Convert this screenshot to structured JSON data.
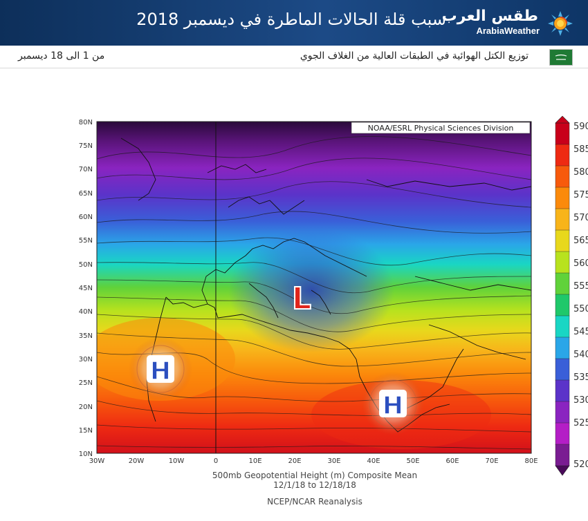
{
  "header": {
    "title": "سبب قلة الحالات الماطرة في ديسمبر 2018",
    "brand_ar": "طقس العرب",
    "brand_en": "ArabiaWeather",
    "logo_icon": "sun-swirl-logo-icon"
  },
  "subheader": {
    "caption": "توزيع الكتل الهوائية في الطبقات العالية من الغلاف الجوي",
    "date_range": "من 1 الى 18 ديسمبر",
    "flag_icon": "saudi-flag-icon"
  },
  "map": {
    "credit": "NOAA/ESRL Physical Sciences Division",
    "lat_labels": [
      "80N",
      "75N",
      "70N",
      "65N",
      "60N",
      "55N",
      "50N",
      "45N",
      "40N",
      "35N",
      "30N",
      "25N",
      "20N",
      "15N",
      "10N"
    ],
    "lon_labels": [
      "30W",
      "20W",
      "10W",
      "0",
      "10E",
      "20E",
      "30E",
      "40E",
      "50E",
      "60E",
      "70E",
      "80E"
    ],
    "caption_line1": "500mb Geopotential Height (m) Composite Mean",
    "caption_line2": "12/1/18   to 12/18/18",
    "caption_line3": "NCEP/NCAR Reanalysis",
    "pressure_markers": [
      {
        "label": "H",
        "name": "high-pressure-west-africa",
        "color": "#2c4fbf"
      },
      {
        "label": "L",
        "name": "low-pressure-balkans",
        "color": "#e0251b"
      },
      {
        "label": "H",
        "name": "high-pressure-arabia",
        "color": "#2c4fbf"
      }
    ],
    "colorbar": {
      "labels": [
        "590",
        "585",
        "580",
        "575",
        "570",
        "565",
        "560",
        "555",
        "550",
        "545",
        "540",
        "535",
        "530",
        "525",
        "520"
      ],
      "colors": [
        "#c8001a",
        "#ee2a12",
        "#f75a0c",
        "#fb8a0b",
        "#f8b41a",
        "#e8d81c",
        "#b8e21e",
        "#60d23a",
        "#1fc86a",
        "#19d6c4",
        "#2aa6e8",
        "#3a5fd8",
        "#5b33c9",
        "#8a24c0",
        "#b41ec6",
        "#7a1c92"
      ]
    }
  }
}
